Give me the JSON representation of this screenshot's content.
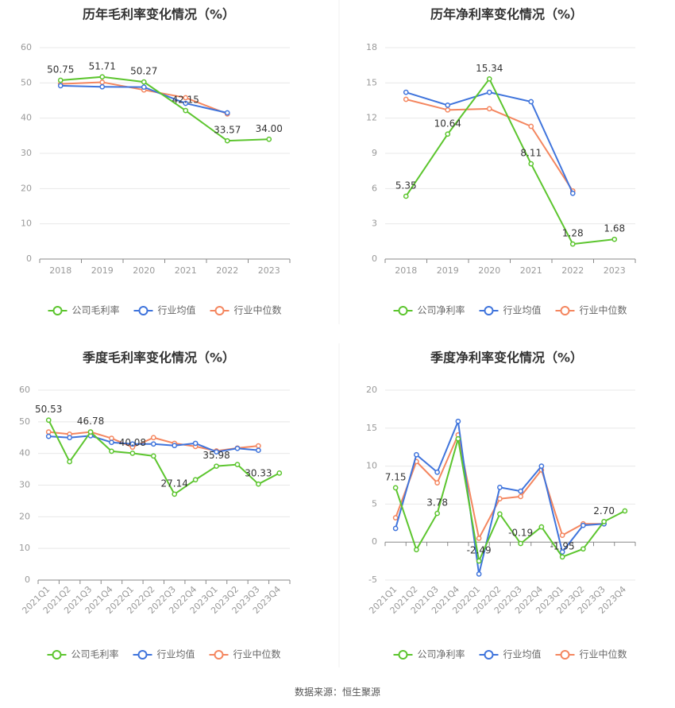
{
  "colors": {
    "company": "#5cc52e",
    "mean": "#3f74dc",
    "median": "#f4865f",
    "grid": "#e8e8e8",
    "axis": "#888888",
    "tick_text": "#999999",
    "title_text": "#333333",
    "label_text": "#333333",
    "legend_text": "#666666"
  },
  "source_text": "数据来源：恒生聚源",
  "chart_data": [
    {
      "id": "annual-gross",
      "type": "line",
      "title": "历年毛利率变化情况（%）",
      "categories": [
        "2018",
        "2019",
        "2020",
        "2021",
        "2022",
        "2023"
      ],
      "ylim": [
        0,
        60
      ],
      "yticks": [
        0,
        10,
        20,
        30,
        40,
        50,
        60
      ],
      "ytick_labels": [
        "0",
        "10",
        "20",
        "30",
        "40",
        "50",
        "60"
      ],
      "rotate_xlabels": false,
      "series": [
        {
          "name": "公司毛利率",
          "color_key": "company",
          "values": [
            50.75,
            51.71,
            50.27,
            42.15,
            33.57,
            34.0
          ]
        },
        {
          "name": "行业均值",
          "color_key": "mean",
          "values": [
            49.2,
            48.9,
            48.8,
            44.2,
            41.5,
            null
          ]
        },
        {
          "name": "行业中位数",
          "color_key": "median",
          "values": [
            49.7,
            50.2,
            48.0,
            45.8,
            41.2,
            null
          ]
        }
      ],
      "labels": [
        {
          "series": 0,
          "index": 0,
          "text": "50.75"
        },
        {
          "series": 0,
          "index": 1,
          "text": "51.71"
        },
        {
          "series": 0,
          "index": 2,
          "text": "50.27"
        },
        {
          "series": 0,
          "index": 3,
          "text": "42.15"
        },
        {
          "series": 0,
          "index": 4,
          "text": "33.57"
        },
        {
          "series": 0,
          "index": 5,
          "text": "34.00"
        }
      ]
    },
    {
      "id": "annual-net",
      "type": "line",
      "title": "历年净利率变化情况（%）",
      "categories": [
        "2018",
        "2019",
        "2020",
        "2021",
        "2022",
        "2023"
      ],
      "ylim": [
        0,
        18
      ],
      "yticks": [
        0,
        3,
        6,
        9,
        12,
        15,
        18
      ],
      "ytick_labels": [
        "0",
        "3",
        "6",
        "9",
        "12",
        "15",
        "18"
      ],
      "rotate_xlabels": false,
      "series": [
        {
          "name": "公司净利率",
          "color_key": "company",
          "values": [
            5.35,
            10.64,
            15.34,
            8.11,
            1.28,
            1.68
          ]
        },
        {
          "name": "行业均值",
          "color_key": "mean",
          "values": [
            14.2,
            13.1,
            14.2,
            13.4,
            5.6,
            null
          ]
        },
        {
          "name": "行业中位数",
          "color_key": "median",
          "values": [
            13.6,
            12.7,
            12.8,
            11.3,
            5.8,
            null
          ]
        }
      ],
      "labels": [
        {
          "series": 0,
          "index": 0,
          "text": "5.35"
        },
        {
          "series": 0,
          "index": 1,
          "text": "10.64"
        },
        {
          "series": 0,
          "index": 2,
          "text": "15.34"
        },
        {
          "series": 0,
          "index": 3,
          "text": "8.11"
        },
        {
          "series": 0,
          "index": 4,
          "text": "1.28"
        },
        {
          "series": 0,
          "index": 5,
          "text": "1.68"
        }
      ]
    },
    {
      "id": "quarterly-gross",
      "type": "line",
      "title": "季度毛利率变化情况（%）",
      "categories": [
        "2021Q1",
        "2021Q2",
        "2021Q3",
        "2021Q4",
        "2022Q1",
        "2022Q2",
        "2022Q3",
        "2022Q4",
        "2023Q1",
        "2023Q2",
        "2023Q3",
        "2023Q4"
      ],
      "ylim": [
        0,
        60
      ],
      "yticks": [
        0,
        10,
        20,
        30,
        40,
        50,
        60
      ],
      "ytick_labels": [
        "0",
        "10",
        "20",
        "30",
        "40",
        "50",
        "60"
      ],
      "rotate_xlabels": true,
      "series": [
        {
          "name": "公司毛利率",
          "color_key": "company",
          "values": [
            50.53,
            37.4,
            46.78,
            40.7,
            40.08,
            39.2,
            27.14,
            31.7,
            35.98,
            36.5,
            30.33,
            33.8
          ]
        },
        {
          "name": "行业均值",
          "color_key": "mean",
          "values": [
            45.4,
            45.0,
            45.6,
            43.5,
            43.0,
            43.0,
            42.5,
            43.2,
            40.5,
            41.6,
            41.0,
            null
          ]
        },
        {
          "name": "行业中位数",
          "color_key": "median",
          "values": [
            46.8,
            46.1,
            46.8,
            44.8,
            42.0,
            45.0,
            43.2,
            42.2,
            40.8,
            41.7,
            42.4,
            null
          ]
        }
      ],
      "labels": [
        {
          "series": 0,
          "index": 0,
          "text": "50.53"
        },
        {
          "series": 0,
          "index": 2,
          "text": "46.78"
        },
        {
          "series": 0,
          "index": 4,
          "text": "40.08"
        },
        {
          "series": 0,
          "index": 6,
          "text": "27.14"
        },
        {
          "series": 0,
          "index": 8,
          "text": "35.98"
        },
        {
          "series": 0,
          "index": 10,
          "text": "30.33"
        }
      ]
    },
    {
      "id": "quarterly-net",
      "type": "line",
      "title": "季度净利率变化情况（%）",
      "categories": [
        "2021Q1",
        "2021Q2",
        "2021Q3",
        "2021Q4",
        "2022Q1",
        "2022Q2",
        "2022Q3",
        "2022Q4",
        "2023Q1",
        "2023Q2",
        "2023Q3",
        "2023Q4"
      ],
      "ylim": [
        -5,
        20
      ],
      "yticks": [
        -5,
        0,
        5,
        10,
        15,
        20
      ],
      "ytick_labels": [
        "-5",
        "0",
        "5",
        "10",
        "15",
        "20"
      ],
      "rotate_xlabels": true,
      "series": [
        {
          "name": "公司净利率",
          "color_key": "company",
          "values": [
            7.15,
            -1.0,
            3.78,
            13.6,
            -2.49,
            3.7,
            -0.19,
            2.0,
            -1.95,
            -0.9,
            2.7,
            4.1
          ]
        },
        {
          "name": "行业均值",
          "color_key": "mean",
          "values": [
            1.8,
            11.5,
            9.2,
            15.9,
            -4.2,
            7.2,
            6.7,
            10.0,
            -1.3,
            2.2,
            2.4,
            null
          ]
        },
        {
          "name": "行业中位数",
          "color_key": "median",
          "values": [
            3.2,
            10.6,
            7.8,
            14.1,
            0.5,
            5.7,
            6.0,
            9.5,
            0.9,
            2.4,
            2.4,
            null
          ]
        }
      ],
      "labels": [
        {
          "series": 0,
          "index": 0,
          "text": "7.15"
        },
        {
          "series": 0,
          "index": 2,
          "text": "3.78"
        },
        {
          "series": 0,
          "index": 4,
          "text": "-2.49"
        },
        {
          "series": 0,
          "index": 6,
          "text": "-0.19"
        },
        {
          "series": 0,
          "index": 8,
          "text": "-1.95"
        },
        {
          "series": 0,
          "index": 10,
          "text": "2.70"
        }
      ]
    }
  ]
}
